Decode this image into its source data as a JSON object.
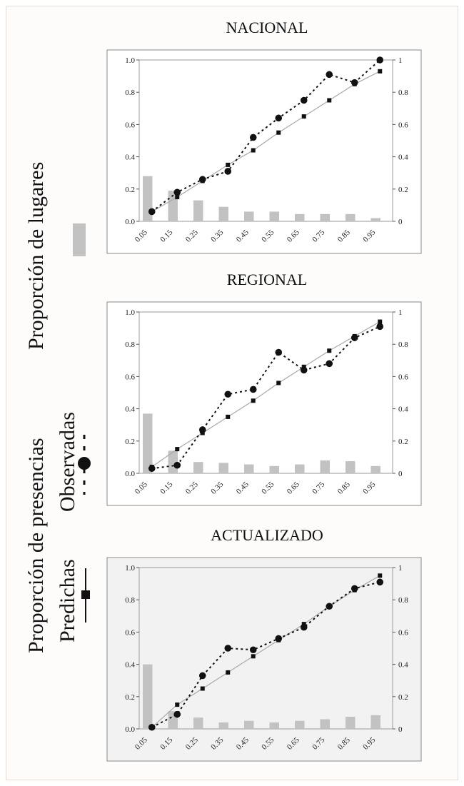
{
  "y_axis_labels": {
    "line1_top": "Proporción  de lugares",
    "line1_bottom": "Proporción  de  presencias",
    "observed": "Observadas",
    "predicted": "Predichas"
  },
  "legend": {
    "bar_color": "#c2c2c2",
    "observed_color": "#111111",
    "predicted_color": "#111111"
  },
  "chart_data": [
    {
      "type": "bar+line",
      "title": "NACIONAL",
      "categories": [
        "0.05",
        "0.15",
        "0.25",
        "0.35",
        "0.45",
        "0.55",
        "0.65",
        "0.75",
        "0.85",
        "0.95"
      ],
      "ylim": [
        0,
        1
      ],
      "y_ticks_left": [
        "0.0",
        "0.2",
        "0.4",
        "0.6",
        "0.8",
        "1.0"
      ],
      "y_ticks_right": [
        "0",
        "0.2",
        "0.4",
        "0.6",
        "0.8",
        "1"
      ],
      "background": "#ffffff",
      "bars": [
        0.28,
        0.19,
        0.13,
        0.09,
        0.06,
        0.06,
        0.045,
        0.045,
        0.045,
        0.02
      ],
      "observed": [
        0.06,
        0.18,
        0.26,
        0.31,
        0.52,
        0.64,
        0.75,
        0.91,
        0.86,
        1.0
      ],
      "predicted": [
        0.06,
        0.15,
        0.25,
        0.35,
        0.44,
        0.55,
        0.65,
        0.75,
        0.85,
        0.93
      ]
    },
    {
      "type": "bar+line",
      "title": "REGIONAL",
      "categories": [
        "0.05",
        "0.15",
        "0.25",
        "0.35",
        "0.45",
        "0.55",
        "0.65",
        "0.75",
        "0.85",
        "0.95"
      ],
      "ylim": [
        0,
        1
      ],
      "y_ticks_left": [
        "0.0",
        "0.2",
        "0.4",
        "0.6",
        "0.8",
        "1.0"
      ],
      "y_ticks_right": [
        "0",
        "0.2",
        "0.4",
        "0.6",
        "0.8",
        "1"
      ],
      "background": "#ffffff",
      "bars": [
        0.37,
        0.14,
        0.07,
        0.065,
        0.055,
        0.045,
        0.055,
        0.08,
        0.075,
        0.045
      ],
      "observed": [
        0.03,
        0.05,
        0.27,
        0.49,
        0.52,
        0.75,
        0.64,
        0.68,
        0.84,
        0.91
      ],
      "predicted": [
        0.04,
        0.15,
        0.25,
        0.35,
        0.45,
        0.56,
        0.66,
        0.76,
        0.85,
        0.94
      ]
    },
    {
      "type": "bar+line",
      "title": "ACTUALIZADO",
      "categories": [
        "0.05",
        "0.15",
        "0.25",
        "0.35",
        "0.45",
        "0.55",
        "0.65",
        "0.75",
        "0.85",
        "0.95"
      ],
      "ylim": [
        0,
        1
      ],
      "y_ticks_left": [
        "0.0",
        "0.2",
        "0.4",
        "0.6",
        "0.8",
        "1.0"
      ],
      "y_ticks_right": [
        "0",
        "0.2",
        "0.4",
        "0.6",
        "0.8",
        "1"
      ],
      "background": "#f2f2f2",
      "bars": [
        0.4,
        0.11,
        0.07,
        0.04,
        0.05,
        0.04,
        0.05,
        0.06,
        0.075,
        0.085
      ],
      "observed": [
        0.01,
        0.09,
        0.33,
        0.5,
        0.49,
        0.56,
        0.63,
        0.76,
        0.87,
        0.91
      ],
      "predicted": [
        0.01,
        0.15,
        0.25,
        0.35,
        0.45,
        0.55,
        0.65,
        0.76,
        0.86,
        0.95
      ]
    }
  ]
}
